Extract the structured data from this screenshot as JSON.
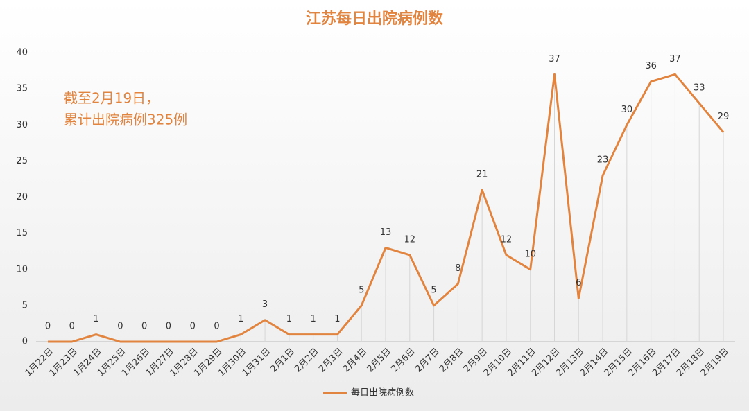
{
  "chart_data": {
    "type": "line",
    "title": "江苏每日出院病例数",
    "annotations": [
      "截至2月19日，",
      "累计出院病例325例"
    ],
    "categories": [
      "1月22日",
      "1月23日",
      "1月24日",
      "1月25日",
      "1月26日",
      "1月27日",
      "1月28日",
      "1月29日",
      "1月30日",
      "1月31日",
      "2月1日",
      "2月2日",
      "2月3日",
      "2月4日",
      "2月5日",
      "2月6日",
      "2月7日",
      "2月8日",
      "2月9日",
      "2月10日",
      "2月11日",
      "2月12日",
      "2月13日",
      "2月14日",
      "2月15日",
      "2月16日",
      "2月17日",
      "2月18日",
      "2月19日"
    ],
    "series": [
      {
        "name": "每日出院病例数",
        "color": "#e0843f",
        "values": [
          0,
          0,
          1,
          0,
          0,
          0,
          0,
          0,
          1,
          3,
          1,
          1,
          1,
          5,
          13,
          12,
          5,
          8,
          21,
          12,
          10,
          37,
          6,
          23,
          30,
          36,
          37,
          33,
          29
        ]
      }
    ],
    "ylim": [
      0,
      40
    ],
    "yticks": [
      0,
      5,
      10,
      15,
      20,
      25,
      30,
      35,
      40
    ],
    "grid": false,
    "drop_lines": true,
    "legend": "bottom"
  }
}
